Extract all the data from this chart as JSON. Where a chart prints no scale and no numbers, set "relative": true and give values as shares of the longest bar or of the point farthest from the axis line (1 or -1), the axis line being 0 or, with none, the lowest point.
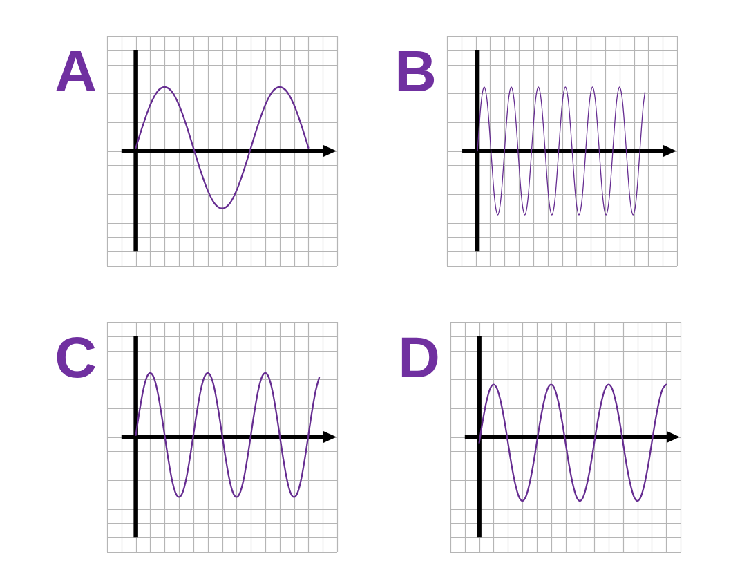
{
  "chart_data": [
    {
      "type": "line",
      "title": "A",
      "relative": true,
      "grid": true,
      "color": "#662d91",
      "categories": [
        null,
        null,
        null,
        null,
        null,
        null,
        null,
        null,
        null,
        null,
        null,
        null,
        null,
        null,
        null,
        null,
        null,
        null,
        null,
        null,
        null,
        null,
        null,
        null,
        null,
        null,
        null,
        null,
        null,
        null,
        null,
        null,
        null
      ],
      "values": [
        null,
        null,
        null,
        null,
        0.05,
        0.41,
        0.72,
        0.93,
        1,
        0.93,
        0.72,
        0.41,
        0.05,
        -0.31,
        -0.62,
        -0.83,
        -0.9,
        -0.83,
        -0.62,
        -0.31,
        0.05,
        0.41,
        0.72,
        0.93,
        1,
        0.93,
        0.72,
        0.41,
        0.05,
        null,
        null,
        null,
        null
      ]
    },
    {
      "type": "line",
      "title": "B",
      "relative": true,
      "grid": true,
      "color": "#662d91",
      "categories": [
        null,
        null,
        null,
        null,
        null,
        null,
        null,
        null,
        null,
        null,
        null,
        null,
        null,
        null,
        null,
        null,
        null,
        null,
        null,
        null,
        null,
        null,
        null,
        null,
        null,
        null,
        null,
        null,
        null,
        null,
        null,
        null,
        null,
        null,
        null,
        null,
        null,
        null,
        null,
        null,
        null,
        null,
        null,
        null,
        null,
        null,
        null,
        null,
        null,
        null,
        null,
        null,
        null,
        null,
        null,
        null,
        null,
        null,
        null,
        null,
        null,
        null,
        null,
        null,
        null,
        null,
        null,
        null,
        null,
        null,
        null,
        null,
        null,
        null,
        null,
        null,
        null,
        null,
        null,
        null,
        null,
        null,
        null,
        null,
        null,
        null,
        null,
        null,
        null,
        null,
        null,
        null,
        null,
        null,
        null,
        null,
        null,
        null,
        null,
        null,
        null,
        null,
        null,
        null,
        null,
        null,
        null,
        null,
        null,
        null,
        null,
        null,
        null,
        null,
        null,
        null,
        null,
        null,
        null,
        null,
        null,
        null,
        null,
        null,
        null,
        null,
        null,
        null,
        null,
        null,
        null,
        null,
        null,
        null,
        null,
        null,
        null
      ],
      "values": [
        null,
        null,
        null,
        null,
        null,
        null,
        null,
        null,
        null,
        null,
        null,
        null,
        null,
        null,
        null,
        null,
        null,
        null,
        0,
        0.38,
        0.71,
        0.92,
        1,
        0.92,
        0.71,
        0.38,
        0,
        -0.38,
        -0.71,
        -0.92,
        -1,
        -0.92,
        -0.71,
        -0.38,
        0,
        0.38,
        0.71,
        0.92,
        1,
        0.92,
        0.71,
        0.38,
        0,
        -0.38,
        -0.71,
        -0.92,
        -1,
        -0.92,
        -0.71,
        -0.38,
        0,
        0.38,
        0.71,
        0.92,
        1,
        0.92,
        0.71,
        0.38,
        0,
        -0.38,
        -0.71,
        -0.92,
        -1,
        -0.92,
        -0.71,
        -0.38,
        0,
        0.38,
        0.71,
        0.92,
        1,
        0.92,
        0.71,
        0.38,
        0,
        -0.38,
        -0.71,
        -0.92,
        -1,
        -0.92,
        -0.71,
        -0.38,
        0,
        0.38,
        0.71,
        0.92,
        1,
        0.92,
        0.71,
        0.38,
        0,
        -0.38,
        -0.71,
        -0.92,
        -1,
        -0.92,
        -0.71,
        -0.38,
        0,
        0.38,
        0.71,
        0.92,
        1,
        0.92,
        0.71,
        0.38,
        0,
        -0.38,
        -0.71,
        -0.92,
        -1,
        -0.92,
        -0.71,
        -0.38,
        0,
        0.38,
        0.71,
        0.92,
        null,
        null,
        null,
        null,
        null,
        null,
        null,
        null,
        null,
        null,
        null,
        null,
        null,
        null,
        null,
        null,
        null,
        null,
        null
      ]
    },
    {
      "type": "line",
      "title": "C",
      "relative": true,
      "grid": true,
      "color": "#662d91",
      "categories": [
        null,
        null,
        null,
        null,
        null,
        null,
        null,
        null,
        null,
        null,
        null,
        null,
        null,
        null,
        null,
        null,
        null,
        null,
        null,
        null,
        null,
        null,
        null,
        null,
        null,
        null,
        null,
        null,
        null,
        null,
        null,
        null,
        null,
        null,
        null,
        null,
        null,
        null,
        null,
        null,
        null,
        null,
        null,
        null,
        null,
        null,
        null,
        null,
        null,
        null,
        null,
        null,
        null,
        null,
        null,
        null,
        null,
        null,
        null,
        null,
        null,
        null,
        null,
        null,
        null
      ],
      "values": [
        null,
        null,
        null,
        null,
        null,
        null,
        null,
        null,
        0.03,
        0.4,
        0.72,
        0.93,
        1,
        0.93,
        0.72,
        0.4,
        0.03,
        -0.34,
        -0.66,
        -0.87,
        -0.94,
        -0.87,
        -0.66,
        -0.34,
        0.03,
        0.4,
        0.72,
        0.93,
        1,
        0.93,
        0.72,
        0.4,
        0.03,
        -0.34,
        -0.66,
        -0.87,
        -0.94,
        -0.87,
        -0.66,
        -0.34,
        0.03,
        0.4,
        0.72,
        0.93,
        1,
        0.93,
        0.72,
        0.4,
        0.03,
        -0.34,
        -0.66,
        -0.87,
        -0.94,
        -0.87,
        -0.66,
        -0.34,
        0.03,
        0.4,
        0.72,
        0.93,
        null,
        null,
        null,
        null,
        null
      ]
    },
    {
      "type": "line",
      "title": "D",
      "relative": true,
      "grid": true,
      "color": "#662d91",
      "categories": [
        null,
        null,
        null,
        null,
        null,
        null,
        null,
        null,
        null,
        null,
        null,
        null,
        null,
        null,
        null,
        null,
        null,
        null,
        null,
        null,
        null,
        null,
        null,
        null,
        null,
        null,
        null,
        null,
        null,
        null,
        null,
        null,
        null,
        null,
        null,
        null,
        null,
        null,
        null,
        null,
        null,
        null,
        null,
        null,
        null,
        null,
        null,
        null,
        null,
        null,
        null,
        null,
        null,
        null,
        null,
        null,
        null,
        null,
        null,
        null,
        null,
        null,
        null,
        null,
        null
      ],
      "values": [
        null,
        null,
        null,
        null,
        null,
        null,
        null,
        null,
        -0.09,
        0.26,
        0.55,
        0.75,
        0.82,
        0.75,
        0.55,
        0.26,
        -0.09,
        -0.44,
        -0.73,
        -0.93,
        -1,
        -0.93,
        -0.73,
        -0.44,
        -0.09,
        0.26,
        0.55,
        0.75,
        0.82,
        0.75,
        0.55,
        0.26,
        -0.09,
        -0.44,
        -0.73,
        -0.93,
        -1,
        -0.93,
        -0.73,
        -0.44,
        -0.09,
        0.26,
        0.55,
        0.75,
        0.82,
        0.75,
        0.55,
        0.26,
        -0.09,
        -0.44,
        -0.73,
        -0.93,
        -1,
        -0.93,
        -0.73,
        -0.44,
        -0.09,
        0.26,
        0.55,
        0.75,
        0.82,
        null,
        null,
        null,
        null
      ]
    }
  ]
}
